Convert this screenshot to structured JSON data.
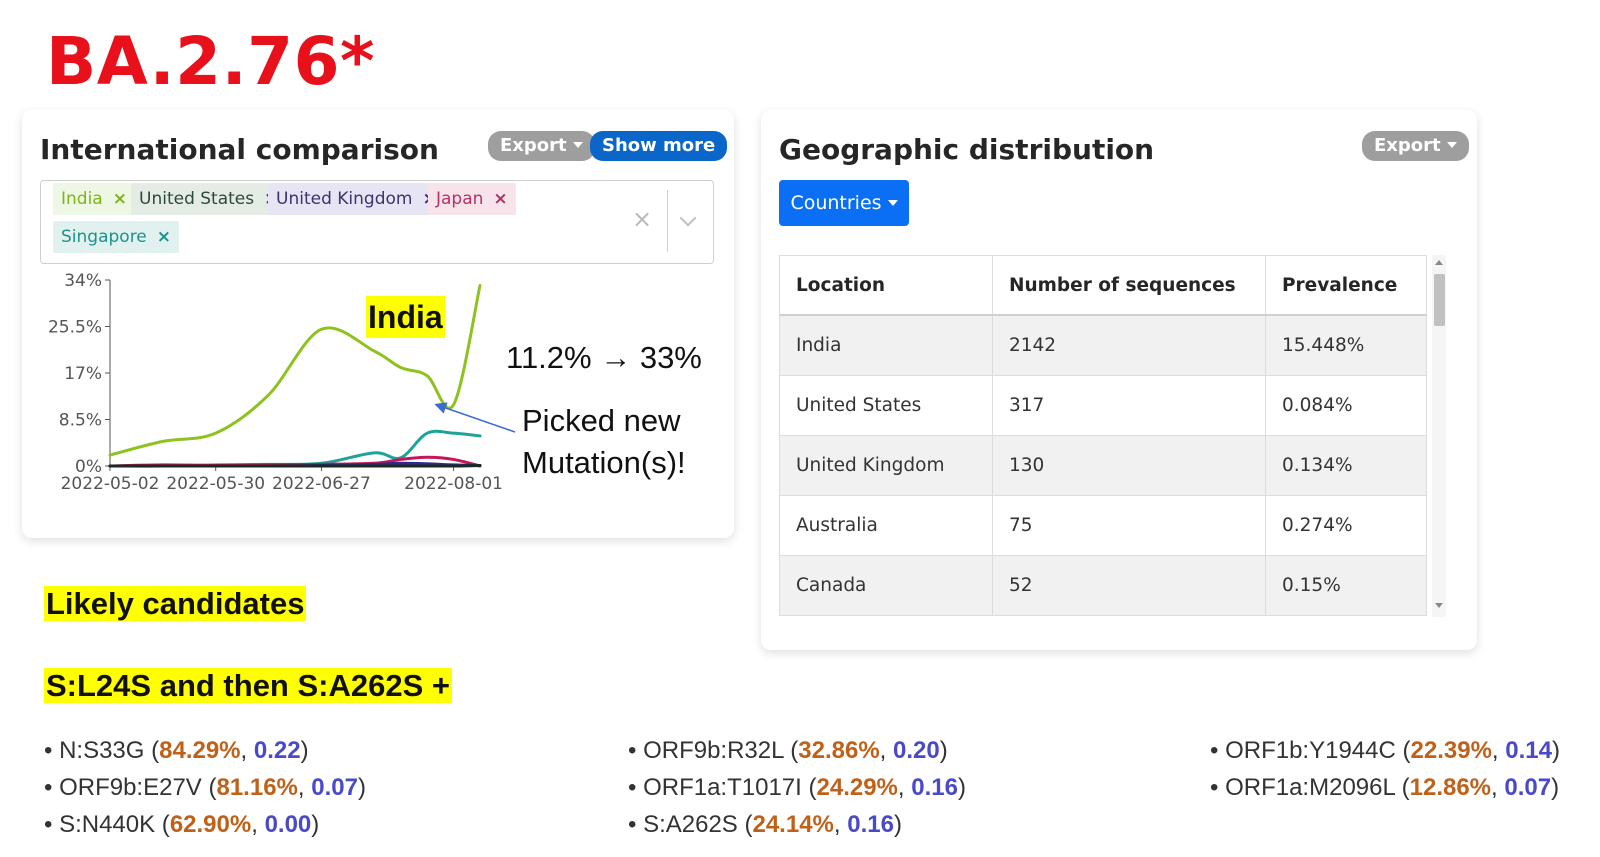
{
  "title": "BA.2.76*",
  "intl": {
    "heading": "International comparison",
    "export_label": "Export",
    "show_more_label": "Show more",
    "tags": [
      "India",
      "United States",
      "United Kingdom",
      "Japan",
      "Singapore"
    ],
    "clear_symbol": "×"
  },
  "annotations": {
    "india": "India",
    "pct_change": "11.2% → 33%",
    "picked_line1": "Picked new",
    "picked_line2": "Mutation(s)!"
  },
  "chart_data": {
    "type": "line",
    "x": [
      "2022-05-02",
      "2022-05-16",
      "2022-05-30",
      "2022-06-13",
      "2022-06-27",
      "2022-07-11",
      "2022-07-18",
      "2022-07-25",
      "2022-08-01",
      "2022-08-08"
    ],
    "x_tick_labels": [
      "2022-05-02",
      "2022-05-30",
      "2022-06-27",
      "2022-08-01"
    ],
    "y_tick_labels": [
      "0%",
      "8.5%",
      "17%",
      "25.5%",
      "34%"
    ],
    "ylim": [
      0,
      34
    ],
    "series": [
      {
        "name": "India",
        "color": "#8dc21f",
        "values": [
          2,
          4.5,
          6,
          13,
          25,
          21,
          18,
          16.5,
          11.2,
          33
        ]
      },
      {
        "name": "United States",
        "color": "#1a2a1e",
        "values": [
          0,
          0,
          0,
          0,
          0,
          0,
          0,
          0,
          0,
          0.1
        ]
      },
      {
        "name": "United Kingdom",
        "color": "#2e2a8c",
        "values": [
          0,
          0,
          0,
          0,
          0.1,
          0.3,
          0.5,
          0.4,
          0.2,
          0.1
        ]
      },
      {
        "name": "Japan",
        "color": "#c2185b",
        "values": [
          0,
          0.2,
          0.1,
          0.2,
          0.3,
          0.5,
          1.2,
          1.6,
          1.2,
          0
        ]
      },
      {
        "name": "Singapore",
        "color": "#1fa399",
        "values": [
          0,
          0,
          0.2,
          0.3,
          0.5,
          2.4,
          1.5,
          6,
          6,
          5.5
        ]
      }
    ]
  },
  "geo": {
    "heading": "Geographic distribution",
    "export_label": "Export",
    "countries_label": "Countries",
    "columns": [
      "Location",
      "Number of sequences",
      "Prevalence"
    ],
    "rows": [
      [
        "India",
        "2142",
        "15.448%"
      ],
      [
        "United States",
        "317",
        "0.084%"
      ],
      [
        "United Kingdom",
        "130",
        "0.134%"
      ],
      [
        "Australia",
        "75",
        "0.274%"
      ],
      [
        "Canada",
        "52",
        "0.15%"
      ]
    ]
  },
  "likely_candidates": "Likely candidates",
  "candidate_mutations": "S:L24S and then S:A262S +",
  "mutations": [
    [
      {
        "name": "N:S33G",
        "pct": "84.29%",
        "val": "0.22"
      },
      {
        "name": "ORF9b:E27V",
        "pct": "81.16%",
        "val": "0.07"
      },
      {
        "name": "S:N440K",
        "pct": "62.90%",
        "val": "0.00"
      }
    ],
    [
      {
        "name": "ORF9b:R32L",
        "pct": "32.86%",
        "val": "0.20"
      },
      {
        "name": "ORF1a:T1017I",
        "pct": "24.29%",
        "val": "0.16"
      },
      {
        "name": "S:A262S",
        "pct": "24.14%",
        "val": "0.16"
      }
    ],
    [
      {
        "name": "ORF1b:Y1944C",
        "pct": "22.39%",
        "val": "0.14"
      },
      {
        "name": "ORF1a:M2096L",
        "pct": "12.86%",
        "val": "0.07"
      }
    ]
  ]
}
